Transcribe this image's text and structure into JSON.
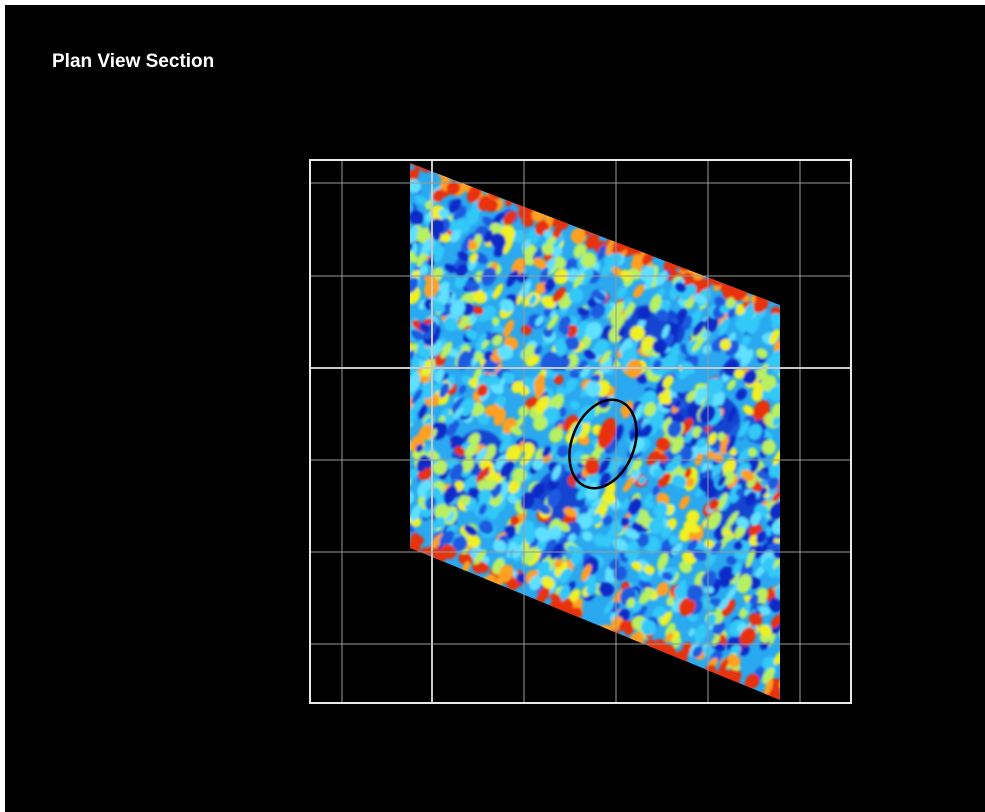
{
  "title": "Plan View Section"
}
